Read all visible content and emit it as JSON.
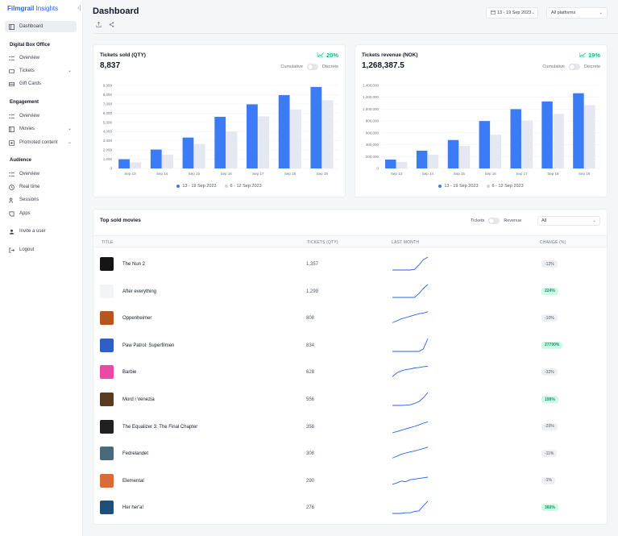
{
  "brand": {
    "name_bold": "Filmgrail",
    "name_rest": " Insights"
  },
  "sidebar": {
    "dashboard": "Dashboard",
    "sections": [
      {
        "title": "Digital Box Office",
        "items": [
          "Overview",
          "Tickets",
          "Gift Cards"
        ]
      },
      {
        "title": "Engagement",
        "items": [
          "Overview",
          "Movies",
          "Promoted content"
        ]
      },
      {
        "title": "Audience",
        "items": [
          "Overview",
          "Real time",
          "Sessions",
          "Apps"
        ]
      }
    ],
    "invite": "Invite a user",
    "logout": "Logout"
  },
  "header": {
    "title": "Dashboard",
    "date_range": "13 - 19 Sep 2023",
    "platform": "All platforms"
  },
  "kpis": [
    {
      "title": "Tickets sold (QTY)",
      "value": "8,837",
      "change": "20%",
      "toggle_left": "Cumulative",
      "toggle_right": "Discrete"
    },
    {
      "title": "Tickets revenue (NOK)",
      "value": "1,268,387.5",
      "change": "19%",
      "toggle_left": "Cumulative",
      "toggle_right": "Discrete"
    }
  ],
  "colors": {
    "current": "#3b7cf6",
    "previous": "#e5e8f0",
    "positive": "#10b981"
  },
  "chart_data": [
    {
      "type": "bar",
      "categories": [
        "Sep 13",
        "Sep 14",
        "Sep 15",
        "Sep 16",
        "Sep 17",
        "Sep 18",
        "Sep 19"
      ],
      "series": [
        {
          "name": "13 - 19 Sep 2023",
          "values": [
            1000,
            2050,
            3350,
            5600,
            6950,
            7950,
            8837
          ]
        },
        {
          "name": "6 - 12 Sep 2023",
          "values": [
            650,
            1500,
            2650,
            4000,
            5650,
            6400,
            7400
          ]
        }
      ],
      "yticks": [
        "0",
        "1,000",
        "2,000",
        "3,000",
        "4,000",
        "5,000",
        "6,000",
        "7,000",
        "8,000",
        "9,000"
      ],
      "ylim": [
        0,
        9000
      ]
    },
    {
      "type": "bar",
      "categories": [
        "Sep 13",
        "Sep 14",
        "Sep 15",
        "Sep 16",
        "Sep 17",
        "Sep 18",
        "Sep 19"
      ],
      "series": [
        {
          "name": "13 - 19 Sep 2023",
          "values": [
            150000,
            300000,
            480000,
            800000,
            1000000,
            1130000,
            1268387.5
          ]
        },
        {
          "name": "6 - 12 Sep 2023",
          "values": [
            110000,
            230000,
            380000,
            570000,
            810000,
            920000,
            1070000
          ]
        }
      ],
      "yticks": [
        "0",
        "200,000",
        "400,000",
        "600,000",
        "800,000",
        "1,000,000",
        "1,200,000",
        "1,400,000"
      ],
      "ylim": [
        0,
        1400000
      ]
    }
  ],
  "movies": {
    "title": "Top sold movies",
    "toggle_left": "Tickets",
    "toggle_right": "Revenue",
    "filter": "All",
    "columns": [
      "TITLE",
      "TICKETS (QTY)",
      "LAST MONTH",
      "CHANGE (%)"
    ],
    "rows": [
      {
        "title": "The Nun 2",
        "tickets": "1,357",
        "change": "-12%",
        "positive": false,
        "poster": "#151515",
        "trend": [
          0,
          0,
          0,
          0,
          0,
          0.05,
          0.4,
          0.8,
          1
        ]
      },
      {
        "title": "After everything",
        "tickets": "1,299",
        "change": "224%",
        "positive": true,
        "poster": "#f3f4f6",
        "trend": [
          0,
          0,
          0,
          0,
          0,
          0,
          0.3,
          0.7,
          1
        ]
      },
      {
        "title": "Oppenheimer",
        "tickets": "808",
        "change": "-10%",
        "positive": false,
        "poster": "#b4561d",
        "trend": [
          0.1,
          0.25,
          0.4,
          0.5,
          0.6,
          0.7,
          0.8,
          0.85,
          0.95
        ]
      },
      {
        "title": "Paw Patrol: Superfilmen",
        "tickets": "834",
        "change": "27700%",
        "positive": true,
        "poster": "#2e5fc4",
        "trend": [
          0,
          0,
          0,
          0,
          0,
          0,
          0,
          0.2,
          1
        ]
      },
      {
        "title": "Barbie",
        "tickets": "628",
        "change": "-32%",
        "positive": false,
        "poster": "#e84aa6",
        "trend": [
          0.1,
          0.4,
          0.55,
          0.65,
          0.7,
          0.78,
          0.82,
          0.88,
          0.9
        ]
      },
      {
        "title": "Mord i Venezia",
        "tickets": "556",
        "change": "199%",
        "positive": true,
        "poster": "#5a3b1f",
        "trend": [
          0,
          0,
          0,
          0.02,
          0.05,
          0.15,
          0.3,
          0.6,
          1
        ]
      },
      {
        "title": "The Equalizer 3: The Final Chapter",
        "tickets": "358",
        "change": "-20%",
        "positive": false,
        "poster": "#202020",
        "trend": [
          0,
          0.1,
          0.2,
          0.3,
          0.4,
          0.5,
          0.62,
          0.75,
          0.85
        ]
      },
      {
        "title": "Fedrelandet",
        "tickets": "308",
        "change": "-11%",
        "positive": false,
        "poster": "#4a6a7a",
        "trend": [
          0.1,
          0.25,
          0.4,
          0.5,
          0.58,
          0.65,
          0.75,
          0.85,
          0.95
        ]
      },
      {
        "title": "Elemental",
        "tickets": "290",
        "change": "-1%",
        "positive": false,
        "poster": "#d86a3c",
        "trend": [
          0.2,
          0.3,
          0.45,
          0.4,
          0.55,
          0.6,
          0.65,
          0.7,
          0.75
        ]
      },
      {
        "title": "Her her'a!",
        "tickets": "276",
        "change": "360%",
        "positive": true,
        "poster": "#1d4f7a",
        "trend": [
          0,
          0,
          0,
          0.05,
          0.05,
          0.15,
          0.2,
          0.6,
          0.95
        ]
      }
    ]
  }
}
